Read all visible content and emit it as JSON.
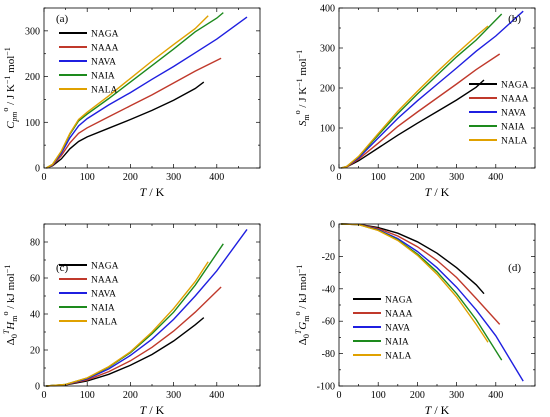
{
  "chart_data": [
    {
      "panel": "(a)",
      "type": "line",
      "ylabel": "C°pm / J K⁻¹ mol⁻¹",
      "xlabel": "T / K",
      "xlim": [
        0,
        500
      ],
      "ylim": [
        0,
        350
      ],
      "xticks": [
        0,
        100,
        200,
        300,
        400
      ],
      "yticks": [
        0,
        100,
        200,
        300
      ],
      "legend_position": "center-left",
      "series": [
        {
          "name": "NAGA",
          "color": "#000000",
          "points": [
            [
              5,
              0
            ],
            [
              20,
              5
            ],
            [
              40,
              20
            ],
            [
              60,
              42
            ],
            [
              80,
              58
            ],
            [
              100,
              68
            ],
            [
              150,
              87
            ],
            [
              200,
              106
            ],
            [
              250,
              126
            ],
            [
              300,
              148
            ],
            [
              350,
              174
            ],
            [
              370,
              188
            ]
          ]
        },
        {
          "name": "NAAA",
          "color": "#c0392b",
          "points": [
            [
              5,
              0
            ],
            [
              20,
              6
            ],
            [
              40,
              27
            ],
            [
              60,
              55
            ],
            [
              80,
              76
            ],
            [
              100,
              88
            ],
            [
              150,
              112
            ],
            [
              200,
              136
            ],
            [
              250,
              160
            ],
            [
              300,
              186
            ],
            [
              350,
              212
            ],
            [
              410,
              240
            ]
          ]
        },
        {
          "name": "NAVA",
          "color": "#1f1fe0",
          "points": [
            [
              5,
              0
            ],
            [
              20,
              7
            ],
            [
              40,
              32
            ],
            [
              60,
              66
            ],
            [
              80,
              92
            ],
            [
              100,
              108
            ],
            [
              150,
              138
            ],
            [
              200,
              165
            ],
            [
              250,
              194
            ],
            [
              300,
              222
            ],
            [
              350,
              252
            ],
            [
              400,
              282
            ],
            [
              470,
              330
            ]
          ]
        },
        {
          "name": "NAIA",
          "color": "#1d8a1d",
          "points": [
            [
              5,
              0
            ],
            [
              20,
              8
            ],
            [
              40,
              36
            ],
            [
              60,
              74
            ],
            [
              80,
              103
            ],
            [
              100,
              118
            ],
            [
              150,
              152
            ],
            [
              200,
              188
            ],
            [
              250,
              224
            ],
            [
              300,
              260
            ],
            [
              350,
              298
            ],
            [
              400,
              328
            ],
            [
              415,
              340
            ]
          ]
        },
        {
          "name": "NALA",
          "color": "#e0a100",
          "points": [
            [
              5,
              0
            ],
            [
              20,
              8
            ],
            [
              40,
              37
            ],
            [
              60,
              76
            ],
            [
              80,
              106
            ],
            [
              100,
              122
            ],
            [
              150,
              158
            ],
            [
              200,
              196
            ],
            [
              250,
              234
            ],
            [
              300,
              270
            ],
            [
              350,
              305
            ],
            [
              380,
              333
            ]
          ]
        }
      ]
    },
    {
      "panel": "(b)",
      "type": "line",
      "ylabel": "S°m / J K⁻¹ mol⁻¹",
      "xlabel": "T / K",
      "xlim": [
        0,
        500
      ],
      "ylim": [
        0,
        400
      ],
      "xticks": [
        0,
        100,
        200,
        300,
        400
      ],
      "yticks": [
        0,
        100,
        200,
        300,
        400
      ],
      "legend_position": "bottom-right",
      "series": [
        {
          "name": "NAGA",
          "color": "#000000",
          "points": [
            [
              5,
              0
            ],
            [
              20,
              3
            ],
            [
              50,
              18
            ],
            [
              100,
              50
            ],
            [
              150,
              82
            ],
            [
              200,
              112
            ],
            [
              250,
              141
            ],
            [
              300,
              170
            ],
            [
              350,
              202
            ],
            [
              370,
              220
            ]
          ]
        },
        {
          "name": "NAAA",
          "color": "#c0392b",
          "points": [
            [
              5,
              0
            ],
            [
              20,
              3
            ],
            [
              50,
              22
            ],
            [
              100,
              62
            ],
            [
              150,
              104
            ],
            [
              200,
              140
            ],
            [
              250,
              175
            ],
            [
              300,
              210
            ],
            [
              350,
              246
            ],
            [
              410,
              285
            ]
          ]
        },
        {
          "name": "NAVA",
          "color": "#1f1fe0",
          "points": [
            [
              5,
              0
            ],
            [
              20,
              4
            ],
            [
              50,
              25
            ],
            [
              100,
              75
            ],
            [
              150,
              124
            ],
            [
              200,
              168
            ],
            [
              250,
              209
            ],
            [
              300,
              250
            ],
            [
              350,
              292
            ],
            [
              400,
              330
            ],
            [
              470,
              392
            ]
          ]
        },
        {
          "name": "NAIA",
          "color": "#1d8a1d",
          "points": [
            [
              5,
              0
            ],
            [
              20,
              4
            ],
            [
              50,
              28
            ],
            [
              100,
              82
            ],
            [
              150,
              136
            ],
            [
              200,
              185
            ],
            [
              250,
              232
            ],
            [
              300,
              278
            ],
            [
              350,
              320
            ],
            [
              415,
              385
            ]
          ]
        },
        {
          "name": "NALA",
          "color": "#e0a100",
          "points": [
            [
              5,
              0
            ],
            [
              20,
              4
            ],
            [
              50,
              29
            ],
            [
              100,
              86
            ],
            [
              150,
              142
            ],
            [
              200,
              192
            ],
            [
              250,
              240
            ],
            [
              300,
              286
            ],
            [
              350,
              330
            ],
            [
              380,
              355
            ]
          ]
        }
      ]
    },
    {
      "panel": "(c)",
      "type": "line",
      "ylabel": "ΔT0H°m / kJ mol⁻¹",
      "xlabel": "T / K",
      "xlim": [
        0,
        500
      ],
      "ylim": [
        0,
        90
      ],
      "xticks": [
        0,
        100,
        200,
        300,
        400
      ],
      "yticks": [
        0,
        20,
        40,
        60,
        80
      ],
      "legend_position": "center-left",
      "series": [
        {
          "name": "NAGA",
          "color": "#000000",
          "points": [
            [
              5,
              0
            ],
            [
              50,
              0.6
            ],
            [
              100,
              2.8
            ],
            [
              150,
              6.5
            ],
            [
              200,
              11.5
            ],
            [
              250,
              17.5
            ],
            [
              300,
              25
            ],
            [
              350,
              34
            ],
            [
              370,
              38
            ]
          ]
        },
        {
          "name": "NAAA",
          "color": "#c0392b",
          "points": [
            [
              5,
              0
            ],
            [
              50,
              0.7
            ],
            [
              100,
              3.4
            ],
            [
              150,
              8
            ],
            [
              200,
              14
            ],
            [
              250,
              21.5
            ],
            [
              300,
              30.5
            ],
            [
              350,
              41
            ],
            [
              410,
              55
            ]
          ]
        },
        {
          "name": "NAVA",
          "color": "#1f1fe0",
          "points": [
            [
              5,
              0
            ],
            [
              50,
              0.8
            ],
            [
              100,
              4
            ],
            [
              150,
              9.5
            ],
            [
              200,
              17
            ],
            [
              250,
              26
            ],
            [
              300,
              37
            ],
            [
              350,
              50
            ],
            [
              400,
              64
            ],
            [
              470,
              87
            ]
          ]
        },
        {
          "name": "NAIA",
          "color": "#1d8a1d",
          "points": [
            [
              5,
              0
            ],
            [
              50,
              0.9
            ],
            [
              100,
              4.4
            ],
            [
              150,
              10.5
            ],
            [
              200,
              18.5
            ],
            [
              250,
              29
            ],
            [
              300,
              41
            ],
            [
              350,
              56
            ],
            [
              415,
              79
            ]
          ]
        },
        {
          "name": "NALA",
          "color": "#e0a100",
          "points": [
            [
              5,
              0
            ],
            [
              50,
              0.9
            ],
            [
              100,
              4.5
            ],
            [
              150,
              10.8
            ],
            [
              200,
              19
            ],
            [
              250,
              30
            ],
            [
              300,
              43
            ],
            [
              350,
              58
            ],
            [
              380,
              69
            ]
          ]
        }
      ]
    },
    {
      "panel": "(d)",
      "type": "line",
      "ylabel": "ΔT0G°m / kJ mol⁻¹",
      "xlabel": "T / K",
      "xlim": [
        0,
        500
      ],
      "ylim": [
        -100,
        0
      ],
      "xticks": [
        0,
        100,
        200,
        300,
        400
      ],
      "yticks": [
        0,
        -20,
        -40,
        -60,
        -80,
        -100
      ],
      "legend_position": "bottom-left",
      "series": [
        {
          "name": "NAGA",
          "color": "#000000",
          "points": [
            [
              5,
              0
            ],
            [
              50,
              -0.2
            ],
            [
              100,
              -2.2
            ],
            [
              150,
              -5.7
            ],
            [
              200,
              -11
            ],
            [
              250,
              -18
            ],
            [
              300,
              -27
            ],
            [
              350,
              -37.5
            ],
            [
              370,
              -43
            ]
          ]
        },
        {
          "name": "NAAA",
          "color": "#c0392b",
          "points": [
            [
              5,
              0
            ],
            [
              50,
              -0.3
            ],
            [
              100,
              -2.8
            ],
            [
              150,
              -7.4
            ],
            [
              200,
              -14
            ],
            [
              250,
              -22.5
            ],
            [
              300,
              -33
            ],
            [
              350,
              -46
            ],
            [
              410,
              -62
            ]
          ]
        },
        {
          "name": "NAVA",
          "color": "#1f1fe0",
          "points": [
            [
              5,
              0
            ],
            [
              50,
              -0.3
            ],
            [
              100,
              -3.5
            ],
            [
              150,
              -9
            ],
            [
              200,
              -17
            ],
            [
              250,
              -27
            ],
            [
              300,
              -39
            ],
            [
              350,
              -53
            ],
            [
              400,
              -69
            ],
            [
              470,
              -97
            ]
          ]
        },
        {
          "name": "NAIA",
          "color": "#1d8a1d",
          "points": [
            [
              5,
              0
            ],
            [
              50,
              -0.4
            ],
            [
              100,
              -3.8
            ],
            [
              150,
              -9.8
            ],
            [
              200,
              -18.5
            ],
            [
              250,
              -29.5
            ],
            [
              300,
              -43
            ],
            [
              350,
              -59
            ],
            [
              415,
              -84
            ]
          ]
        },
        {
          "name": "NALA",
          "color": "#e0a100",
          "points": [
            [
              5,
              0
            ],
            [
              50,
              -0.4
            ],
            [
              100,
              -4
            ],
            [
              150,
              -10.2
            ],
            [
              200,
              -19.3
            ],
            [
              250,
              -31
            ],
            [
              300,
              -45
            ],
            [
              350,
              -62
            ],
            [
              380,
              -73
            ]
          ]
        }
      ]
    }
  ]
}
